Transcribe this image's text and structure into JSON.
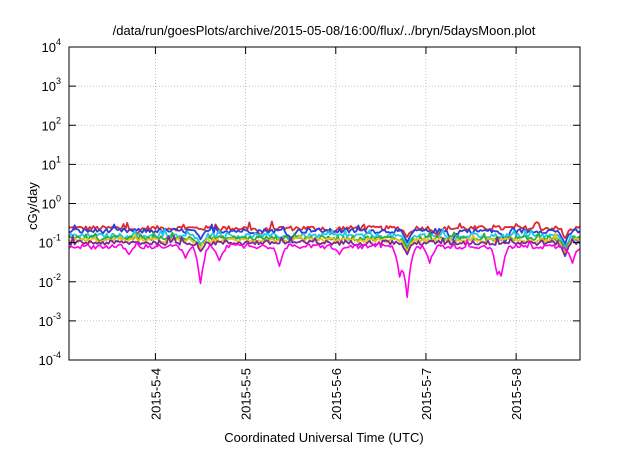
{
  "chart_data": {
    "type": "line",
    "title": "/data/run/goesPlots/archive/2015-05-08/16:00/flux/../bryn/5daysMoon.plot",
    "xlabel": "Coordinated Universal Time (UTC)",
    "ylabel": "cGy/day",
    "y_scale": "log",
    "ylim": [
      0.0001,
      10000
    ],
    "y_ticks": [
      {
        "value": 0.0001,
        "base": "10",
        "exp": "-4"
      },
      {
        "value": 0.001,
        "base": "10",
        "exp": "-3"
      },
      {
        "value": 0.01,
        "base": "10",
        "exp": "-2"
      },
      {
        "value": 0.1,
        "base": "10",
        "exp": "-1"
      },
      {
        "value": 1,
        "base": "10",
        "exp": "0"
      },
      {
        "value": 10,
        "base": "10",
        "exp": "1"
      },
      {
        "value": 100,
        "base": "10",
        "exp": "2"
      },
      {
        "value": 1000,
        "base": "10",
        "exp": "3"
      },
      {
        "value": 10000,
        "base": "10",
        "exp": "4"
      }
    ],
    "xlim": [
      "2015-05-03 01:00",
      "2015-05-08 17:00"
    ],
    "x_ticks": [
      "2015-5-4",
      "2015-5-5",
      "2015-5-6",
      "2015-5-7",
      "2015-5-8"
    ],
    "grid": true,
    "legend": "none",
    "series": [
      {
        "color": "#e0282e",
        "base": 0.235,
        "dips": [
          [
            "2015-05-03 19:00",
            0.17
          ],
          [
            "2015-05-05 04:00",
            0.15
          ],
          [
            "2015-05-05 23:00",
            0.17
          ],
          [
            "2015-05-06 19:00",
            0.14
          ],
          [
            "2015-05-07 03:00",
            0.15
          ],
          [
            "2015-05-08 13:00",
            0.13
          ]
        ]
      },
      {
        "color": "#2a3fd6",
        "base": 0.2,
        "dips": [
          [
            "2015-05-04 12:00",
            0.12
          ],
          [
            "2015-05-05 12:00",
            0.13
          ],
          [
            "2015-05-06 19:00",
            0.1
          ],
          [
            "2015-05-07 07:00",
            0.11
          ],
          [
            "2015-05-07 21:00",
            0.1
          ],
          [
            "2015-05-08 13:00",
            0.09
          ]
        ]
      },
      {
        "color": "#1ec8e8",
        "base": 0.15,
        "dips": [
          [
            "2015-05-04 12:00",
            0.09
          ],
          [
            "2015-05-05 12:00",
            0.1
          ],
          [
            "2015-05-06 19:00",
            0.08
          ],
          [
            "2015-05-07 07:00",
            0.08
          ],
          [
            "2015-05-08 13:00",
            0.07
          ]
        ]
      },
      {
        "color": "#33aa33",
        "base": 0.13,
        "dips": [
          [
            "2015-05-04 12:00",
            0.08
          ],
          [
            "2015-05-06 19:00",
            0.07
          ],
          [
            "2015-05-08 13:00",
            0.06
          ]
        ]
      },
      {
        "color": "#e8c21e",
        "base": 0.115,
        "dips": [
          [
            "2015-05-04 12:00",
            0.07
          ],
          [
            "2015-05-06 19:00",
            0.06
          ],
          [
            "2015-05-08 13:00",
            0.05
          ]
        ]
      },
      {
        "color": "#7a2a9a",
        "base": 0.1,
        "dips": [
          [
            "2015-05-04 12:00",
            0.06
          ],
          [
            "2015-05-06 19:00",
            0.05
          ],
          [
            "2015-05-08 13:00",
            0.045
          ]
        ]
      },
      {
        "color": "#ff00e6",
        "base": 0.08,
        "dips": [
          [
            "2015-05-03 17:00",
            0.05
          ],
          [
            "2015-05-04 08:00",
            0.04
          ],
          [
            "2015-05-04 12:00",
            0.009
          ],
          [
            "2015-05-04 17:00",
            0.035
          ],
          [
            "2015-05-05 09:00",
            0.025
          ],
          [
            "2015-05-06 01:00",
            0.05
          ],
          [
            "2015-05-06 17:00",
            0.014
          ],
          [
            "2015-05-06 19:00",
            0.004
          ],
          [
            "2015-05-07 01:00",
            0.03
          ],
          [
            "2015-05-07 19:00",
            0.016
          ],
          [
            "2015-05-07 20:00",
            0.014
          ],
          [
            "2015-05-08 15:00",
            0.03
          ]
        ]
      }
    ]
  }
}
